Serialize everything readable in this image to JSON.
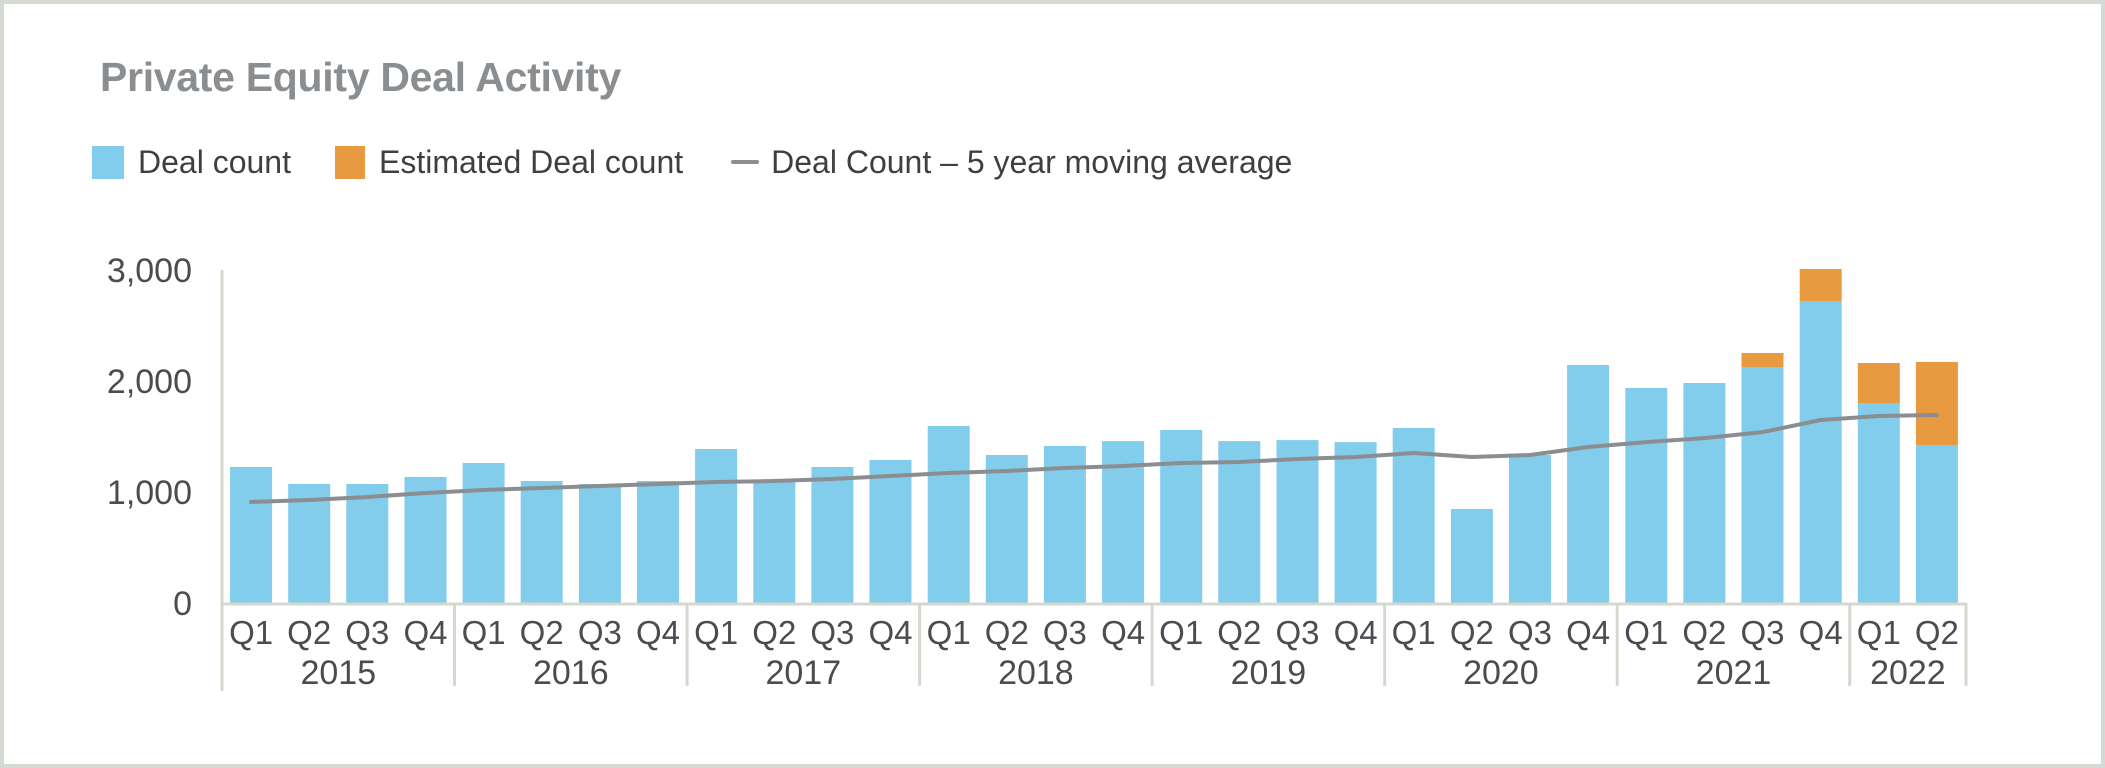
{
  "chart_data": {
    "type": "bar",
    "title": "Private Equity Deal Activity",
    "xlabel": "",
    "ylabel": "",
    "ylim": [
      0,
      3000
    ],
    "yticks": [
      0,
      1000,
      2000,
      3000
    ],
    "ytick_labels": [
      "0",
      "1,000",
      "2,000",
      "3,000"
    ],
    "grid": false,
    "stacked": true,
    "legend_position": "top-left",
    "categories": [
      "2015 Q1",
      "2015 Q2",
      "2015 Q3",
      "2015 Q4",
      "2016 Q1",
      "2016 Q2",
      "2016 Q3",
      "2016 Q4",
      "2017 Q1",
      "2017 Q2",
      "2017 Q3",
      "2017 Q4",
      "2018 Q1",
      "2018 Q2",
      "2018 Q3",
      "2018 Q4",
      "2019 Q1",
      "2019 Q2",
      "2019 Q3",
      "2019 Q4",
      "2020 Q1",
      "2020 Q2",
      "2020 Q3",
      "2020 Q4",
      "2021 Q1",
      "2021 Q2",
      "2021 Q3",
      "2021 Q4",
      "2022 Q1",
      "2022 Q2"
    ],
    "quarter_labels": [
      "Q1",
      "Q2",
      "Q3",
      "Q4",
      "Q1",
      "Q2",
      "Q3",
      "Q4",
      "Q1",
      "Q2",
      "Q3",
      "Q4",
      "Q1",
      "Q2",
      "Q3",
      "Q4",
      "Q1",
      "Q2",
      "Q3",
      "Q4",
      "Q1",
      "Q2",
      "Q3",
      "Q4",
      "Q1",
      "Q2",
      "Q3",
      "Q4",
      "Q1",
      "Q2"
    ],
    "year_groups": [
      {
        "label": "2015",
        "quarters": 4
      },
      {
        "label": "2016",
        "quarters": 4
      },
      {
        "label": "2017",
        "quarters": 4
      },
      {
        "label": "2018",
        "quarters": 4
      },
      {
        "label": "2019",
        "quarters": 4
      },
      {
        "label": "2020",
        "quarters": 4
      },
      {
        "label": "2021",
        "quarters": 4
      },
      {
        "label": "2022",
        "quarters": 2
      }
    ],
    "series": [
      {
        "name": "Deal count",
        "type": "bar",
        "color": "#82cdeb",
        "values": [
          1225,
          1072,
          1072,
          1135,
          1261,
          1099,
          1072,
          1099,
          1387,
          1090,
          1225,
          1288,
          1595,
          1333,
          1414,
          1459,
          1559,
          1459,
          1468,
          1450,
          1577,
          847,
          1333,
          2144,
          1937,
          1982,
          2126,
          2721,
          1802,
          1423
        ]
      },
      {
        "name": "Estimated Deal count",
        "type": "bar",
        "color": "#e89a40",
        "values": [
          0,
          0,
          0,
          0,
          0,
          0,
          0,
          0,
          0,
          0,
          0,
          0,
          0,
          0,
          0,
          0,
          0,
          0,
          0,
          0,
          0,
          0,
          0,
          0,
          0,
          0,
          126,
          288,
          360,
          748
        ]
      },
      {
        "name": "Deal Count – 5 year moving average",
        "type": "line",
        "color": "#8a8e91",
        "values": [
          910,
          928,
          955,
          991,
          1018,
          1036,
          1054,
          1072,
          1090,
          1099,
          1117,
          1144,
          1171,
          1189,
          1216,
          1234,
          1261,
          1270,
          1297,
          1315,
          1351,
          1315,
          1333,
          1405,
          1450,
          1486,
          1540,
          1649,
          1685,
          1694
        ]
      }
    ]
  },
  "colors": {
    "axis": "#d4d9cf",
    "frame": "#d5dbd2",
    "label_text": "#4a4d50"
  }
}
